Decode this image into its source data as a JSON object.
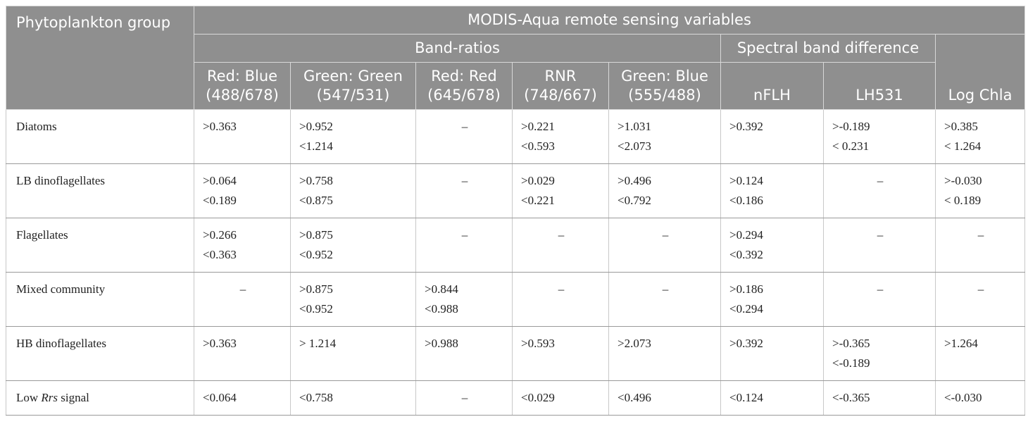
{
  "table": {
    "header": {
      "first": "Phytoplankton group",
      "top": "MODIS-Aqua remote sensing variables",
      "groups": [
        "Band-ratios",
        "Spectral band difference"
      ],
      "columns": [
        [
          "Red: Blue",
          "(488/678)"
        ],
        [
          "Green: Green",
          "(547/531)"
        ],
        [
          "Red: Red",
          "(645/678)"
        ],
        [
          "RNR",
          "(748/667)"
        ],
        [
          "Green: Blue",
          "(555/488)"
        ],
        [
          "nFLH"
        ],
        [
          "LH531"
        ],
        [
          "Log Chla"
        ]
      ]
    },
    "rows": [
      {
        "group": [
          {
            "text": "Diatoms"
          }
        ],
        "cells": [
          [
            ">0.363"
          ],
          [
            ">0.952",
            "<1.214"
          ],
          [
            "–"
          ],
          [
            ">0.221",
            "<0.593"
          ],
          [
            ">1.031",
            "<2.073"
          ],
          [
            ">0.392"
          ],
          [
            ">-0.189",
            "< 0.231"
          ],
          [
            ">0.385",
            "< 1.264"
          ]
        ]
      },
      {
        "group": [
          {
            "text": "LB dinoflagellates"
          }
        ],
        "cells": [
          [
            ">0.064",
            "<0.189"
          ],
          [
            ">0.758",
            "<0.875"
          ],
          [
            "–"
          ],
          [
            ">0.029",
            "<0.221"
          ],
          [
            ">0.496",
            "<0.792"
          ],
          [
            ">0.124",
            "<0.186"
          ],
          [
            "–"
          ],
          [
            ">-0.030",
            "< 0.189"
          ]
        ]
      },
      {
        "group": [
          {
            "text": "Flagellates"
          }
        ],
        "cells": [
          [
            ">0.266",
            "<0.363"
          ],
          [
            ">0.875",
            "<0.952"
          ],
          [
            "–"
          ],
          [
            "–"
          ],
          [
            "–"
          ],
          [
            ">0.294",
            "<0.392"
          ],
          [
            "–"
          ],
          [
            "–"
          ]
        ]
      },
      {
        "group": [
          {
            "text": "Mixed community"
          }
        ],
        "cells": [
          [
            "–"
          ],
          [
            ">0.875",
            "<0.952"
          ],
          [
            ">0.844",
            "<0.988"
          ],
          [
            "–"
          ],
          [
            "–"
          ],
          [
            ">0.186",
            "<0.294"
          ],
          [
            "–"
          ],
          [
            "–"
          ]
        ]
      },
      {
        "group": [
          {
            "text": "HB dinoflagellates"
          }
        ],
        "cells": [
          [
            ">0.363"
          ],
          [
            "> 1.214"
          ],
          [
            ">0.988"
          ],
          [
            ">0.593"
          ],
          [
            ">2.073"
          ],
          [
            ">0.392"
          ],
          [
            ">-0.365",
            "<-0.189"
          ],
          [
            ">1.264"
          ]
        ]
      },
      {
        "group": [
          {
            "text": "Low "
          },
          {
            "text": "Rrs",
            "italic": true
          },
          {
            "text": " signal"
          }
        ],
        "cells": [
          [
            "<0.064"
          ],
          [
            "<0.758"
          ],
          [
            "–"
          ],
          [
            "<0.029"
          ],
          [
            "<0.496"
          ],
          [
            "<0.124"
          ],
          [
            "<-0.365"
          ],
          [
            "<-0.030"
          ]
        ]
      }
    ]
  }
}
